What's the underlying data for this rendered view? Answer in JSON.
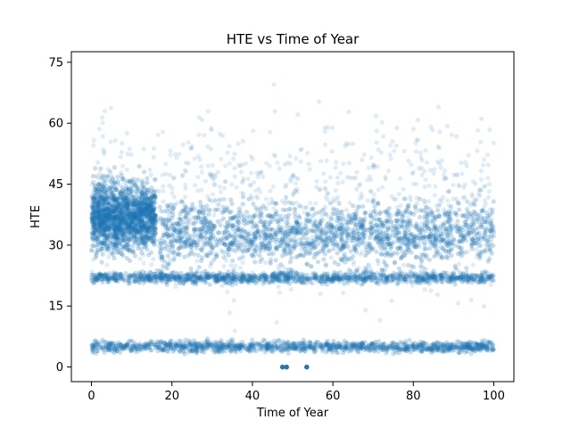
{
  "chart_data": {
    "type": "scatter",
    "title": "HTE vs Time of Year",
    "xlabel": "Time of Year",
    "ylabel": "HTE",
    "xlim": [
      -5,
      105
    ],
    "ylim": [
      -3.6,
      77.6
    ],
    "xticks": [
      0,
      20,
      40,
      60,
      80,
      100
    ],
    "yticks": [
      0,
      15,
      30,
      45,
      60,
      75
    ],
    "grid": false,
    "marker_color": "#1f77b4",
    "marker_alpha": 0.15,
    "clusters": [
      {
        "x_range": [
          0,
          100
        ],
        "y_center": 5,
        "y_spread": 1.5,
        "density": "very-high"
      },
      {
        "x_range": [
          0,
          100
        ],
        "y_center": 22,
        "y_spread": 1.5,
        "density": "very-high"
      },
      {
        "x_range": [
          0,
          16
        ],
        "y_center": 37,
        "y_spread": 9,
        "density": "high"
      },
      {
        "x_range": [
          17,
          100
        ],
        "y_center": 33,
        "y_spread": 8,
        "density": "high"
      },
      {
        "x_range": [
          0,
          100
        ],
        "y_center": 40,
        "y_spread": 18,
        "density": "sparse"
      }
    ],
    "dense_points": [
      {
        "x": 47.5,
        "y": 0
      },
      {
        "x": 48.5,
        "y": 0
      },
      {
        "x": 53.5,
        "y": 0
      }
    ]
  }
}
